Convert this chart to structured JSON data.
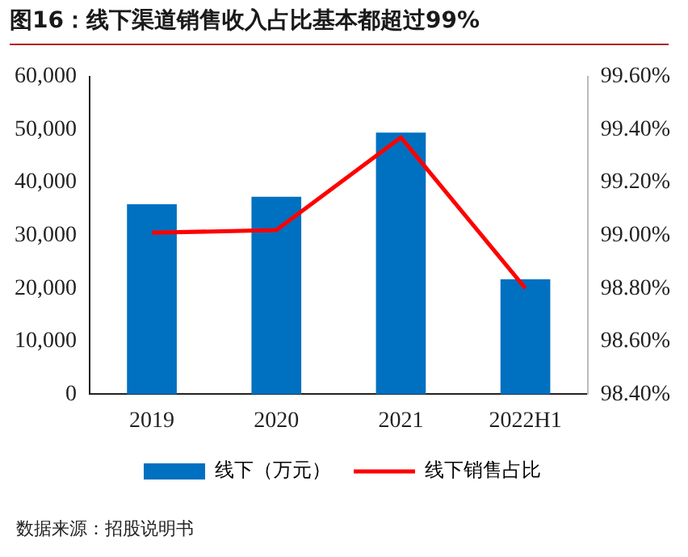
{
  "chart_data": {
    "type": "bar",
    "title": "图16：线下渠道销售收入占比基本都超过99%",
    "categories": [
      "2019",
      "2020",
      "2021",
      "2022H1"
    ],
    "series": [
      {
        "name": "线下（万元）",
        "color": "#0070c0",
        "values": [
          35900,
          37300,
          49400,
          21700
        ]
      },
      {
        "name": "线下销售占比",
        "type": "line",
        "axis": "y2",
        "color": "#ff0000",
        "values": [
          99.01,
          99.02,
          99.37,
          98.8
        ]
      }
    ],
    "ylim": [
      0,
      60000
    ],
    "yticks": [
      {
        "value": 0,
        "label": "0"
      },
      {
        "value": 10000,
        "label": "10,000"
      },
      {
        "value": 20000,
        "label": "20,000"
      },
      {
        "value": 30000,
        "label": "30,000"
      },
      {
        "value": 40000,
        "label": "40,000"
      },
      {
        "value": 50000,
        "label": "50,000"
      },
      {
        "value": 60000,
        "label": "60,000"
      }
    ],
    "y2lim": [
      98.4,
      99.6
    ],
    "y2ticks": [
      {
        "value": 98.4,
        "label": "98.40%"
      },
      {
        "value": 98.6,
        "label": "98.60%"
      },
      {
        "value": 98.8,
        "label": "98.80%"
      },
      {
        "value": 99.0,
        "label": "99.00%"
      },
      {
        "value": 99.2,
        "label": "99.20%"
      },
      {
        "value": 99.4,
        "label": "99.40%"
      },
      {
        "value": 99.6,
        "label": "99.60%"
      }
    ],
    "grid": false,
    "legend": "bottom",
    "marker": "none",
    "annotations": [
      "数据来源：招股说明书"
    ]
  }
}
